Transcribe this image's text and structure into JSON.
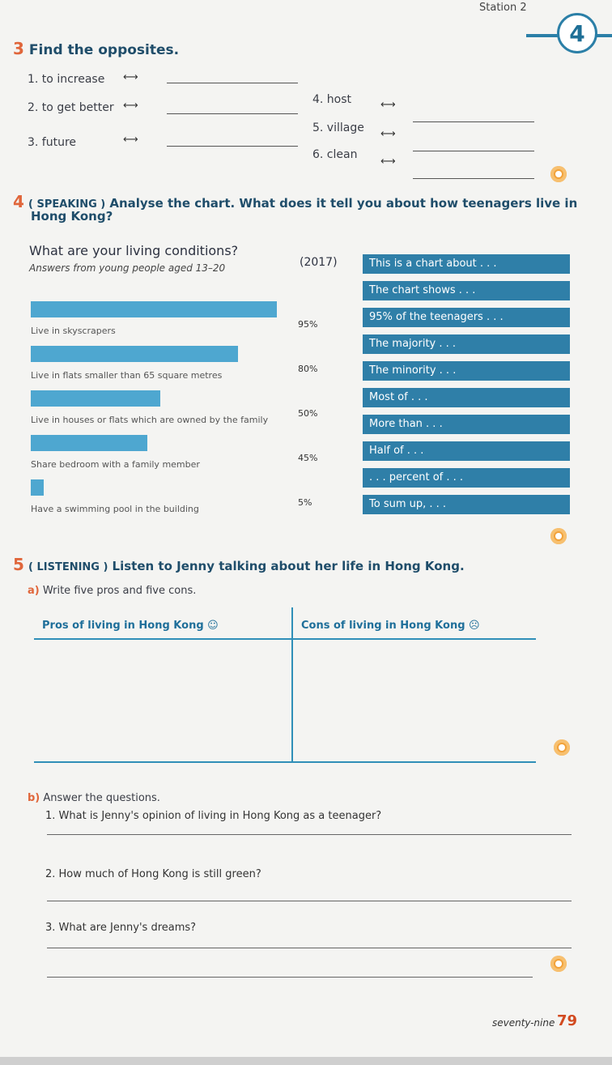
{
  "header": {
    "station": "Station 2",
    "badge": "4"
  },
  "ex3": {
    "num": "3",
    "title": "Find the opposites.",
    "items": [
      {
        "label": "1. to increase"
      },
      {
        "label": "2. to get better"
      },
      {
        "label": "3. future"
      },
      {
        "label": "4. host"
      },
      {
        "label": "5. village"
      },
      {
        "label": "6. clean"
      }
    ],
    "arrow": "⟷"
  },
  "ex4": {
    "num": "4",
    "tag": "( SPEAKING )",
    "title": "Analyse the chart. What does it tell you about how teenagers live in",
    "title2": "Hong Kong?",
    "chart_data": {
      "type": "bar",
      "title": "What are your living conditions?",
      "subtitle": "Answers from young people aged 13–20",
      "year": "(2017)",
      "categories": [
        "Live in skyscrapers",
        "Live in flats smaller than 65 square metres",
        "Live in houses or flats which are owned by the family",
        "Share bedroom with a family member",
        "Have a swimming pool in the building"
      ],
      "values": [
        95,
        80,
        50,
        45,
        5
      ],
      "value_labels": [
        "95%",
        "80%",
        "50%",
        "45%",
        "5%"
      ],
      "ylim": [
        0,
        100
      ]
    },
    "phrases": [
      "This is a chart about . . .",
      "The chart shows . . .",
      "95% of the teenagers . . .",
      "The majority . . .",
      "The minority . . .",
      "Most of . . .",
      "More than . . .",
      "Half of . . .",
      ". . . percent of . . .",
      "To sum up, . . ."
    ]
  },
  "ex5": {
    "num": "5",
    "tag": "( LISTENING )",
    "title": "Listen to Jenny talking about her life in Hong Kong.",
    "a_label": "a)",
    "a_text": "Write five pros and five cons.",
    "pros_header": "Pros of living in Hong Kong ☺",
    "cons_header": "Cons of living in Hong Kong ☹",
    "b_label": "b)",
    "b_text": "Answer the questions.",
    "questions": [
      "1. What is Jenny's opinion of living in Hong Kong as a teenager?",
      "2. How much of Hong Kong is still green?",
      "3. What are Jenny's dreams?"
    ]
  },
  "footer": {
    "word": "seventy-nine",
    "page": "79"
  },
  "colors": {
    "bar": "#4ea7d0",
    "phrase": "#2f7fa8",
    "accent": "#e0663b",
    "page_num": "#d24a20"
  }
}
